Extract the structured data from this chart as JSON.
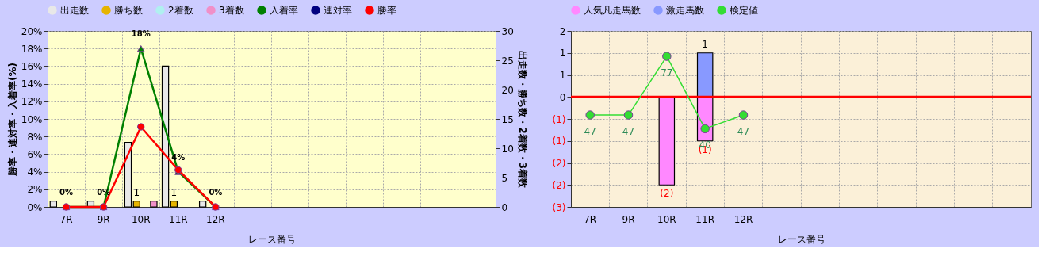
{
  "chart_data": [
    {
      "type": "bar",
      "categories": [
        "7R",
        "9R",
        "10R",
        "11R",
        "12R",
        null,
        null,
        null,
        null,
        null,
        null,
        null
      ],
      "xlabel": "レース番号",
      "ylabel": "勝率・連対率・入着率(%)",
      "y2label": "出走数・勝ち数・2着数・3着数",
      "ylim": [
        0,
        20
      ],
      "yticks": [
        {
          "value": 0,
          "label": "0%"
        },
        {
          "value": 2,
          "label": "2%"
        },
        {
          "value": 4,
          "label": "4%"
        },
        {
          "value": 6,
          "label": "6%"
        },
        {
          "value": 8,
          "label": "8%"
        },
        {
          "value": 10,
          "label": "10%"
        },
        {
          "value": 12,
          "label": "12%"
        },
        {
          "value": 14,
          "label": "14%"
        },
        {
          "value": 16,
          "label": "16%"
        },
        {
          "value": 18,
          "label": "18%"
        },
        {
          "value": 20,
          "label": "20%"
        }
      ],
      "y2lim": [
        0,
        30
      ],
      "y2ticks": [
        0,
        5,
        10,
        15,
        20,
        25,
        30
      ],
      "grid": true,
      "legend": "top",
      "series": [
        {
          "name": "出走数",
          "type": "bar",
          "axis": "y2",
          "color": "#e8e8e8",
          "values": [
            1,
            1,
            11,
            24,
            1,
            null,
            null,
            null,
            null,
            null,
            null,
            null
          ]
        },
        {
          "name": "勝ち数",
          "type": "bar",
          "axis": "y2",
          "color": "#e6b400",
          "values": [
            null,
            null,
            1,
            1,
            null,
            null,
            null,
            null,
            null,
            null,
            null,
            null
          ],
          "value_labels": [
            null,
            null,
            "1",
            "1",
            null,
            null,
            null,
            null,
            null,
            null,
            null,
            null
          ]
        },
        {
          "name": "2着数",
          "type": "bar",
          "axis": "y2",
          "color": "#b0f0f0",
          "values": [
            null,
            null,
            null,
            null,
            null,
            null,
            null,
            null,
            null,
            null,
            null,
            null
          ]
        },
        {
          "name": "3着数",
          "type": "bar",
          "axis": "y2",
          "color": "#f090c8",
          "values": [
            null,
            null,
            1,
            null,
            null,
            null,
            null,
            null,
            null,
            null,
            null,
            null
          ]
        },
        {
          "name": "入着率",
          "type": "line",
          "color": "#008000",
          "marker": "triangle",
          "values": [
            0,
            0,
            18,
            4,
            0,
            null,
            null,
            null,
            null,
            null,
            null,
            null
          ],
          "value_labels": [
            "0%",
            "0%",
            "18%",
            "4%",
            "0%",
            null,
            null,
            null,
            null,
            null,
            null,
            null
          ]
        },
        {
          "name": "連対率",
          "type": "line",
          "color": "#000080",
          "marker": "diamond",
          "values": [
            null,
            null,
            null,
            null,
            null,
            null,
            null,
            null,
            null,
            null,
            null,
            null
          ]
        },
        {
          "name": "勝率",
          "type": "line",
          "color": "#ff0000",
          "marker": "circle",
          "values": [
            0,
            0,
            9.1,
            4.2,
            0,
            null,
            null,
            null,
            null,
            null,
            null,
            null
          ]
        }
      ]
    },
    {
      "type": "bar",
      "stacked": true,
      "categories": [
        "7R",
        "9R",
        "10R",
        "11R",
        "12R",
        null,
        null,
        null,
        null,
        null,
        null,
        null
      ],
      "xlabel": "レース番号",
      "ylim": [
        -2.5,
        1.5
      ],
      "yticks": [
        {
          "value": 1.5,
          "label": "2"
        },
        {
          "value": 1,
          "label": "1"
        },
        {
          "value": 0.5,
          "label": "1"
        },
        {
          "value": 0,
          "label": "0"
        },
        {
          "value": -0.5,
          "label": "(1)"
        },
        {
          "value": -1,
          "label": "(1)"
        },
        {
          "value": -1.5,
          "label": "(2)"
        },
        {
          "value": -2,
          "label": "(2)"
        },
        {
          "value": -2.5,
          "label": "(3)"
        }
      ],
      "y2lim": [
        0,
        90
      ],
      "grid": true,
      "legend": "top",
      "ref_lines": [
        {
          "axis": "y",
          "value": 0,
          "color": "#ff0000"
        }
      ],
      "series": [
        {
          "name": "人気凡走馬数",
          "type": "bar",
          "color": "#ff88ff",
          "values": [
            null,
            null,
            -2,
            -1,
            null,
            null,
            null,
            null,
            null,
            null,
            null,
            null
          ],
          "value_labels": [
            null,
            null,
            "(2)",
            "(1)",
            null,
            null,
            null,
            null,
            null,
            null,
            null,
            null
          ]
        },
        {
          "name": "激走馬数",
          "type": "bar",
          "color": "#8899ff",
          "values": [
            null,
            null,
            null,
            1,
            null,
            null,
            null,
            null,
            null,
            null,
            null,
            null
          ],
          "value_labels": [
            null,
            null,
            null,
            "1",
            null,
            null,
            null,
            null,
            null,
            null,
            null,
            null
          ]
        },
        {
          "name": "検定値",
          "type": "line",
          "axis": "y2",
          "color": "#33dd33",
          "marker": "circle",
          "values": [
            47,
            47,
            77,
            40,
            47,
            null,
            null,
            null,
            null,
            null,
            null,
            null
          ],
          "value_labels": [
            "47",
            "47",
            "77",
            "40",
            "47",
            null,
            null,
            null,
            null,
            null,
            null,
            null
          ]
        }
      ]
    }
  ]
}
